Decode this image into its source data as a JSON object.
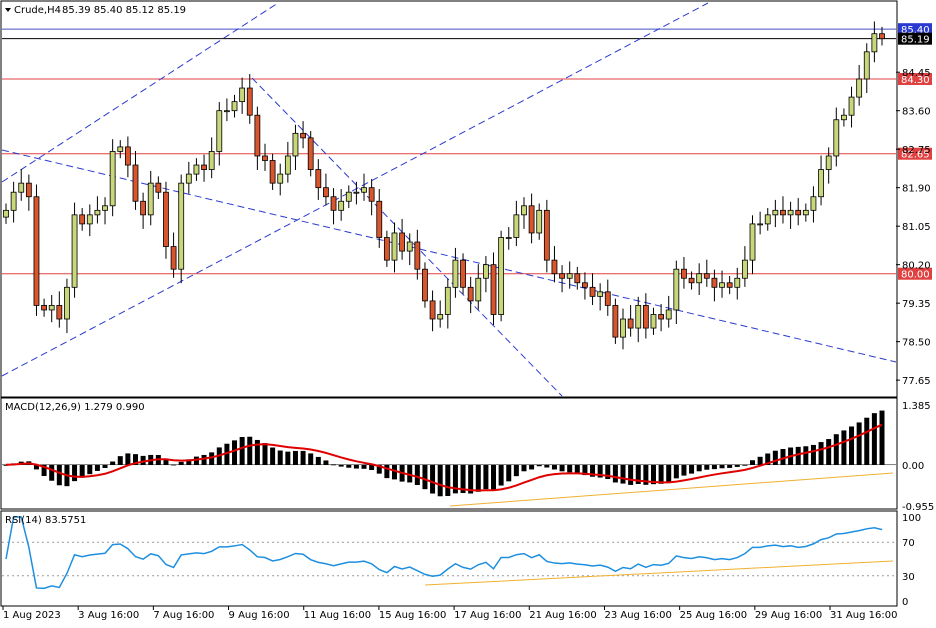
{
  "header": {
    "symbol_label": "Crude,H4",
    "ohlc": "85.39 85.40 85.12 85.19"
  },
  "colors": {
    "bull": "#c8d77a",
    "bear": "#d7562e",
    "hline": "#e04040",
    "channel": "#2a3ad0",
    "macd_signal": "#e00000",
    "rsi": "#1e8fe0",
    "trend": "#f0b030"
  },
  "price_tags": {
    "ask": "85.40",
    "bid": "85.19",
    "levels": [
      "84.30",
      "82.65",
      "80.00"
    ]
  },
  "chart_data": {
    "type": "candlestick",
    "ylim": [
      77.3,
      86.0
    ],
    "price_ticks": [
      "84.45",
      "83.60",
      "82.75",
      "81.90",
      "81.05",
      "80.20",
      "79.35",
      "78.50",
      "77.65"
    ],
    "x_ticks": [
      "1 Aug 2023",
      "3 Aug 16:00",
      "7 Aug 16:00",
      "9 Aug 16:00",
      "11 Aug 16:00",
      "15 Aug 16:00",
      "17 Aug 16:00",
      "21 Aug 16:00",
      "23 Aug 16:00",
      "25 Aug 16:00",
      "29 Aug 16:00",
      "31 Aug 16:00"
    ],
    "horizontal_levels": [
      84.3,
      82.65,
      80.0
    ],
    "ask": 85.4,
    "bid": 85.19,
    "close": [
      81.4,
      81.8,
      82.0,
      81.7,
      79.3,
      79.2,
      79.3,
      79.0,
      79.7,
      81.3,
      81.1,
      81.3,
      81.4,
      81.5,
      82.7,
      82.8,
      82.4,
      81.6,
      81.3,
      82.0,
      81.8,
      80.6,
      80.1,
      82.0,
      82.2,
      82.4,
      82.3,
      82.7,
      83.6,
      83.6,
      83.8,
      84.1,
      83.5,
      82.6,
      82.5,
      82.0,
      82.2,
      82.6,
      83.1,
      83.0,
      82.3,
      81.9,
      81.7,
      81.4,
      81.6,
      81.8,
      81.8,
      81.9,
      81.6,
      80.8,
      80.3,
      80.9,
      80.5,
      80.7,
      80.1,
      79.4,
      79.0,
      79.1,
      79.7,
      80.3,
      79.7,
      79.4,
      79.9,
      80.2,
      79.1,
      80.8,
      80.8,
      81.3,
      81.5,
      80.9,
      81.4,
      80.3,
      80.0,
      79.9,
      80.0,
      79.8,
      79.7,
      79.5,
      79.6,
      79.3,
      78.6,
      79.0,
      78.8,
      79.3,
      78.8,
      79.1,
      79.0,
      79.2,
      80.1,
      79.9,
      79.8,
      80.0,
      79.9,
      79.7,
      79.8,
      79.7,
      79.9,
      80.3,
      81.1,
      81.1,
      81.3,
      81.4,
      81.3,
      81.4,
      81.3,
      81.4,
      81.7,
      82.3,
      82.6,
      83.4,
      83.5,
      83.9,
      84.3,
      84.9,
      85.3,
      85.19
    ],
    "macd": {
      "label": "MACD(12,26,9) 1.279 0.990",
      "ylim": [
        -0.955,
        1.385
      ],
      "ticks": [
        "1.385",
        "0.00",
        "-0.955"
      ]
    },
    "rsi": {
      "label": "RSI(14) 83.5751",
      "ylim": [
        0,
        100
      ],
      "ticks": [
        "100",
        "70",
        "30",
        "0"
      ],
      "levels": [
        70,
        30
      ]
    }
  }
}
